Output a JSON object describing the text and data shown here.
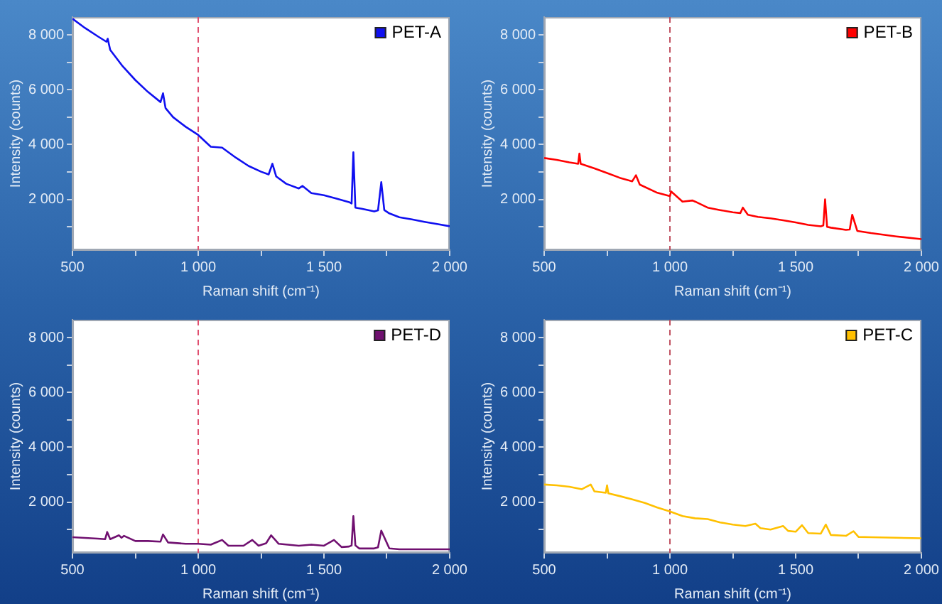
{
  "chart_data": [
    {
      "type": "line",
      "xlabel": "Raman shift (cm⁻¹)",
      "ylabel": "Intensity (counts)",
      "legend": "top right",
      "grid": false,
      "marker": "none",
      "line_style": "solid",
      "xlim": [
        500,
        2000
      ],
      "ylim": [
        150,
        8650
      ],
      "xticks": [
        {
          "value": 500,
          "label": "500"
        },
        {
          "value": 750,
          "label": null
        },
        {
          "value": 1000,
          "label": "1 000"
        },
        {
          "value": 1250,
          "label": null
        },
        {
          "value": 1500,
          "label": "1 500"
        },
        {
          "value": 1750,
          "label": null
        },
        {
          "value": 2000,
          "label": "2 000"
        }
      ],
      "yticks": [
        {
          "value": 1000,
          "label": null
        },
        {
          "value": 2000,
          "label": "2 000"
        },
        {
          "value": 3000,
          "label": null
        },
        {
          "value": 4000,
          "label": "4 000"
        },
        {
          "value": 5000,
          "label": null
        },
        {
          "value": 6000,
          "label": "6 000"
        },
        {
          "value": 7000,
          "label": null
        },
        {
          "value": 8000,
          "label": "8 000"
        }
      ],
      "ref_lines": [
        {
          "axis": "x",
          "value": 1000,
          "color": "#e05070",
          "line_style": "dashed"
        }
      ],
      "series": [
        {
          "name": "PET-A",
          "color": "#1010f0",
          "x": [
            500,
            550,
            600,
            635,
            640,
            650,
            700,
            750,
            800,
            850,
            860,
            870,
            900,
            950,
            1000,
            1050,
            1095,
            1120,
            1150,
            1200,
            1250,
            1280,
            1295,
            1310,
            1350,
            1400,
            1415,
            1450,
            1500,
            1550,
            1600,
            1610,
            1617,
            1625,
            1650,
            1700,
            1715,
            1728,
            1740,
            1760,
            1800,
            1850,
            1900,
            1950,
            2000
          ],
          "values": [
            8590,
            8250,
            7950,
            7750,
            7860,
            7450,
            6850,
            6350,
            5920,
            5550,
            5870,
            5330,
            5000,
            4650,
            4350,
            3920,
            3890,
            3720,
            3520,
            3220,
            3010,
            2910,
            3300,
            2840,
            2570,
            2400,
            2490,
            2230,
            2150,
            2030,
            1900,
            1850,
            3720,
            1700,
            1660,
            1560,
            1600,
            2630,
            1610,
            1490,
            1350,
            1270,
            1180,
            1100,
            1020
          ]
        }
      ]
    },
    {
      "type": "line",
      "xlabel": "Raman shift (cm⁻¹)",
      "ylabel": "Intensity (counts)",
      "legend": "top right",
      "grid": false,
      "marker": "none",
      "line_style": "solid",
      "xlim": [
        500,
        2000
      ],
      "ylim": [
        150,
        8650
      ],
      "xticks": [
        {
          "value": 500,
          "label": "500"
        },
        {
          "value": 750,
          "label": null
        },
        {
          "value": 1000,
          "label": "1 000"
        },
        {
          "value": 1250,
          "label": null
        },
        {
          "value": 1500,
          "label": "1 500"
        },
        {
          "value": 1750,
          "label": null
        },
        {
          "value": 2000,
          "label": "2 000"
        }
      ],
      "yticks": [
        {
          "value": 1000,
          "label": null
        },
        {
          "value": 2000,
          "label": "2 000"
        },
        {
          "value": 3000,
          "label": null
        },
        {
          "value": 4000,
          "label": "4 000"
        },
        {
          "value": 5000,
          "label": null
        },
        {
          "value": 6000,
          "label": "6 000"
        },
        {
          "value": 7000,
          "label": null
        },
        {
          "value": 8000,
          "label": "8 000"
        }
      ],
      "ref_lines": [
        {
          "axis": "x",
          "value": 1000,
          "color": "#c05060",
          "line_style": "dashed"
        }
      ],
      "series": [
        {
          "name": "PET-B",
          "color": "#ff0000",
          "x": [
            500,
            550,
            600,
            635,
            640,
            645,
            700,
            750,
            800,
            850,
            865,
            880,
            950,
            1000,
            1005,
            1050,
            1090,
            1100,
            1150,
            1200,
            1250,
            1280,
            1290,
            1310,
            1350,
            1400,
            1450,
            1500,
            1550,
            1600,
            1610,
            1617,
            1625,
            1640,
            1700,
            1715,
            1725,
            1745,
            1800,
            1900,
            2000
          ],
          "values": [
            3510,
            3440,
            3350,
            3300,
            3670,
            3300,
            3130,
            2960,
            2790,
            2660,
            2880,
            2540,
            2240,
            2120,
            2290,
            1920,
            1960,
            1920,
            1700,
            1610,
            1530,
            1500,
            1700,
            1440,
            1360,
            1310,
            1240,
            1160,
            1070,
            1020,
            1050,
            2000,
            1000,
            970,
            890,
            900,
            1440,
            850,
            770,
            650,
            550
          ]
        }
      ]
    },
    {
      "type": "line",
      "xlabel": "Raman shift (cm⁻¹)",
      "ylabel": "Intensity (counts)",
      "legend": "top right",
      "grid": false,
      "marker": "none",
      "line_style": "solid",
      "xlim": [
        500,
        2000
      ],
      "ylim": [
        150,
        8650
      ],
      "xticks": [
        {
          "value": 500,
          "label": "500"
        },
        {
          "value": 750,
          "label": null
        },
        {
          "value": 1000,
          "label": "1 000"
        },
        {
          "value": 1250,
          "label": null
        },
        {
          "value": 1500,
          "label": "1 500"
        },
        {
          "value": 1750,
          "label": null
        },
        {
          "value": 2000,
          "label": "2 000"
        }
      ],
      "yticks": [
        {
          "value": 1000,
          "label": null
        },
        {
          "value": 2000,
          "label": "2 000"
        },
        {
          "value": 3000,
          "label": null
        },
        {
          "value": 4000,
          "label": "4 000"
        },
        {
          "value": 5000,
          "label": null
        },
        {
          "value": 6000,
          "label": "6 000"
        },
        {
          "value": 7000,
          "label": null
        },
        {
          "value": 8000,
          "label": "8 000"
        }
      ],
      "ref_lines": [
        {
          "axis": "x",
          "value": 1000,
          "color": "#e05070",
          "line_style": "dashed"
        }
      ],
      "series": [
        {
          "name": "PET-D",
          "color": "#701070",
          "x": [
            500,
            600,
            630,
            638,
            650,
            685,
            695,
            705,
            750,
            800,
            850,
            860,
            880,
            950,
            1000,
            1050,
            1095,
            1120,
            1180,
            1215,
            1240,
            1270,
            1290,
            1320,
            1400,
            1450,
            1500,
            1540,
            1570,
            1600,
            1610,
            1617,
            1625,
            1640,
            1700,
            1715,
            1728,
            1760,
            1800,
            1900,
            2000
          ],
          "values": [
            720,
            670,
            650,
            910,
            650,
            790,
            700,
            770,
            580,
            580,
            560,
            820,
            530,
            480,
            480,
            450,
            620,
            410,
            410,
            620,
            410,
            500,
            790,
            480,
            410,
            450,
            410,
            620,
            360,
            380,
            420,
            1490,
            420,
            310,
            310,
            350,
            960,
            310,
            280,
            280,
            280
          ]
        }
      ]
    },
    {
      "type": "line",
      "xlabel": "Raman shift (cm⁻¹)",
      "ylabel": "Intensity (counts)",
      "legend": "top right",
      "grid": false,
      "marker": "none",
      "line_style": "solid",
      "xlim": [
        500,
        2000
      ],
      "ylim": [
        150,
        8650
      ],
      "xticks": [
        {
          "value": 500,
          "label": "500"
        },
        {
          "value": 750,
          "label": null
        },
        {
          "value": 1000,
          "label": "1 000"
        },
        {
          "value": 1250,
          "label": null
        },
        {
          "value": 1500,
          "label": "1 500"
        },
        {
          "value": 1750,
          "label": null
        },
        {
          "value": 2000,
          "label": "2 000"
        }
      ],
      "yticks": [
        {
          "value": 1000,
          "label": null
        },
        {
          "value": 2000,
          "label": "2 000"
        },
        {
          "value": 3000,
          "label": null
        },
        {
          "value": 4000,
          "label": "4 000"
        },
        {
          "value": 5000,
          "label": null
        },
        {
          "value": 6000,
          "label": "6 000"
        },
        {
          "value": 7000,
          "label": null
        },
        {
          "value": 8000,
          "label": "8 000"
        }
      ],
      "ref_lines": [
        {
          "axis": "x",
          "value": 1000,
          "color": "#c05060",
          "line_style": "dashed"
        }
      ],
      "series": [
        {
          "name": "PET-C",
          "color": "#ffc000",
          "x": [
            500,
            550,
            600,
            650,
            685,
            700,
            745,
            750,
            755,
            800,
            850,
            900,
            950,
            1000,
            1050,
            1100,
            1150,
            1200,
            1250,
            1300,
            1340,
            1360,
            1400,
            1450,
            1470,
            1500,
            1525,
            1550,
            1600,
            1620,
            1640,
            1700,
            1730,
            1750,
            1800,
            1900,
            2000
          ],
          "values": [
            2640,
            2610,
            2560,
            2470,
            2640,
            2390,
            2340,
            2610,
            2320,
            2220,
            2100,
            1970,
            1800,
            1660,
            1490,
            1410,
            1380,
            1260,
            1180,
            1130,
            1210,
            1050,
            1000,
            1130,
            950,
            920,
            1160,
            870,
            850,
            1180,
            800,
            770,
            940,
            730,
            720,
            700,
            680
          ]
        }
      ]
    }
  ]
}
